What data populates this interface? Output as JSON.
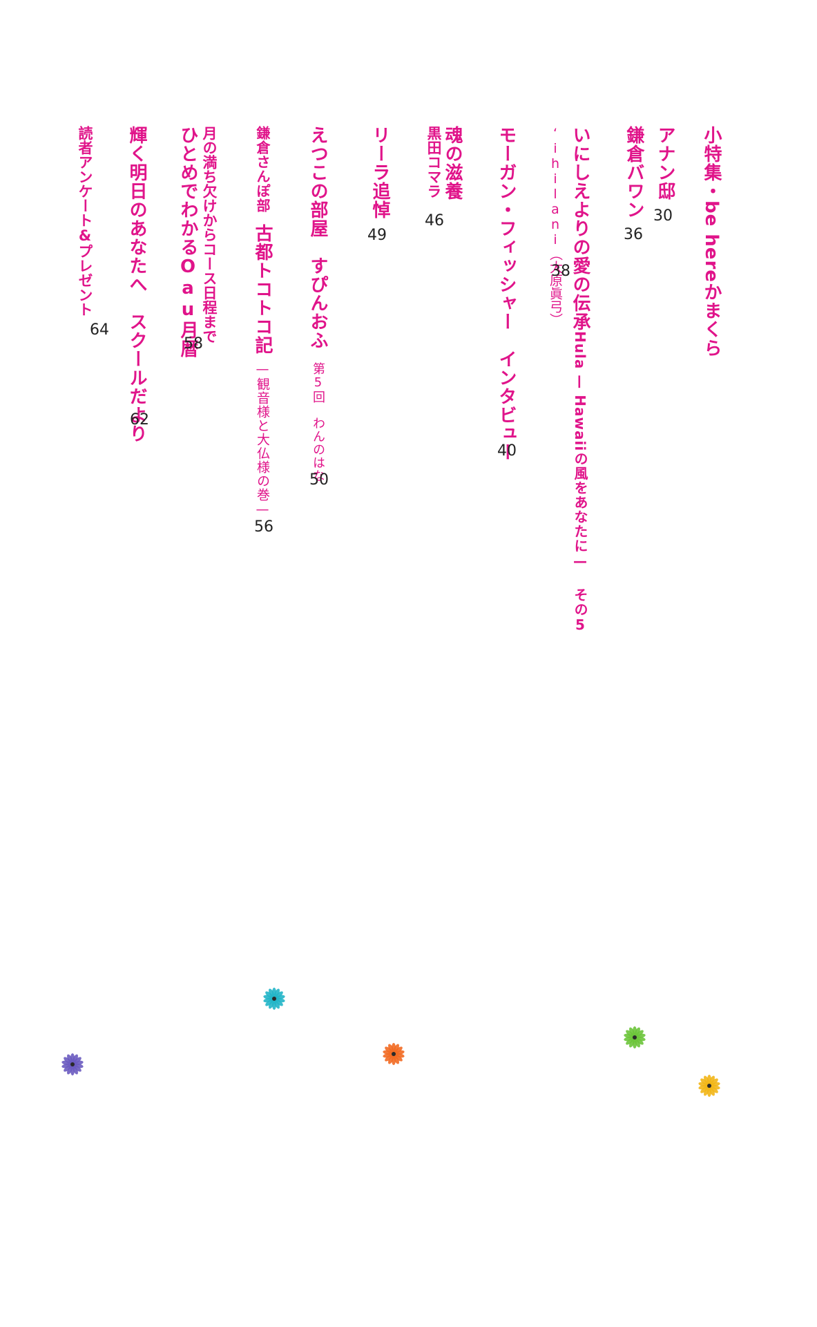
{
  "toc": [
    {
      "title": "小特集・",
      "latin": "be here",
      "title_rest": "かまくら",
      "page": ""
    },
    {
      "title": "アナン邸",
      "page": "30"
    },
    {
      "title": "鎌倉バワン",
      "page": "36"
    },
    {
      "title": "いにしえよりの愛の伝承",
      "latin": "Hula — Hawaii",
      "title_rest": "の風をあなたに— その5",
      "sub": "‘ihilani（大原眞弓）",
      "page": "38"
    },
    {
      "title": "モーガン・フィッシャー　インタビュー",
      "page": "40"
    },
    {
      "title": "魂の滋養",
      "sub": "黒田コマラ",
      "page": "46"
    },
    {
      "title": "リーラ追悼",
      "page": "49"
    },
    {
      "title": "えつこの部屋　すぴんおふ",
      "small": "第5回　わんのはな",
      "page": "50"
    },
    {
      "title_small": "鎌倉さんぽ部",
      "title": "古都トコトコ記",
      "small": "—観音様と大仏様の巻—",
      "page": "56"
    },
    {
      "title_small": "月の満ち欠けからコース日程まで",
      "title": "ひとめでわかるOau月暦",
      "page": "58"
    },
    {
      "title": "輝く明日のあなたへ　スクールだより",
      "page": "62"
    },
    {
      "title_small": "読者アンケート&プレゼント",
      "page": "64"
    }
  ],
  "flowers": [
    {
      "name": "teal-flower-icon",
      "color": "#22b5c8"
    },
    {
      "name": "purple-flower-icon",
      "color": "#6a5bc0"
    },
    {
      "name": "orange-flower-icon",
      "color": "#f26a22"
    },
    {
      "name": "green-flower-icon",
      "color": "#6cc43a"
    },
    {
      "name": "yellow-flower-icon",
      "color": "#f2b618"
    }
  ]
}
